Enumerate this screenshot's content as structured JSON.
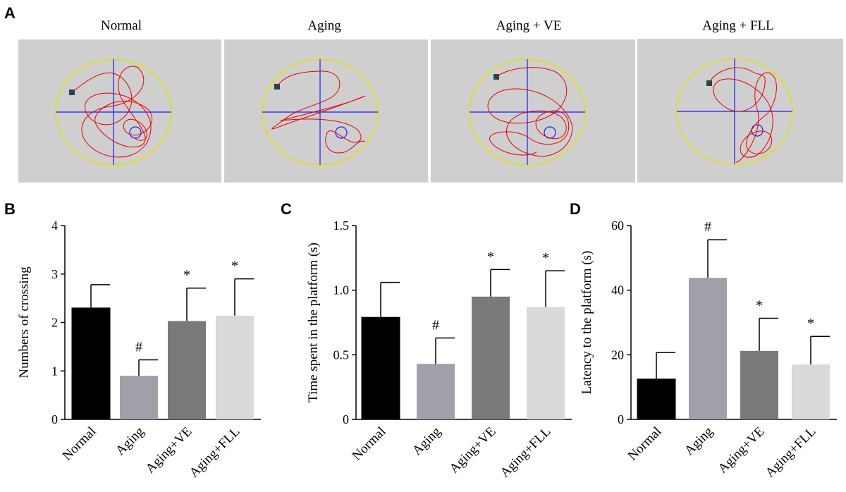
{
  "panels": {
    "a": "A",
    "b": "B",
    "c": "C",
    "d": "D"
  },
  "maze": {
    "titles": [
      "Normal",
      "Aging",
      "Aging + VE",
      "Aging + FLL"
    ],
    "colors": {
      "background": "#cfcfcf",
      "pool": "#e5e000",
      "axis": "#1a1aff",
      "path": "#e60000",
      "platform": "#1a1aff",
      "start": "#1a4a4a"
    }
  },
  "chart_data": [
    {
      "type": "bar",
      "categories": [
        "Normal",
        "Aging",
        "Aging+VE",
        "Aging+FLL"
      ],
      "values": [
        2.3,
        0.9,
        2.03,
        2.14
      ],
      "errors": [
        0.48,
        0.33,
        0.68,
        0.76
      ],
      "annotations": [
        "",
        "#",
        "*",
        "*"
      ],
      "ylabel": "Numbers of crossing",
      "ylim": [
        0,
        4
      ],
      "yticks": [
        "0",
        "1",
        "2",
        "3",
        "4"
      ],
      "colors": [
        "#000000",
        "#a0a0a8",
        "#7a7a7a",
        "#d9d9d9"
      ]
    },
    {
      "type": "bar",
      "categories": [
        "Normal",
        "Aging",
        "Aging+VE",
        "Aging+FLL"
      ],
      "values": [
        0.79,
        0.43,
        0.95,
        0.87
      ],
      "errors": [
        0.27,
        0.2,
        0.21,
        0.28
      ],
      "annotations": [
        "",
        "#",
        "*",
        "*"
      ],
      "ylabel": "Time spent in the platform (s)",
      "ylim": [
        0,
        1.5
      ],
      "yticks": [
        "0",
        "0.5",
        "1.0",
        "1.5"
      ],
      "colors": [
        "#000000",
        "#a0a0a8",
        "#7a7a7a",
        "#d9d9d9"
      ]
    },
    {
      "type": "bar",
      "categories": [
        "Normal",
        "Aging",
        "Aging+VE",
        "Aging+FLL"
      ],
      "values": [
        12.5,
        43.8,
        21.2,
        17.0
      ],
      "errors": [
        8.2,
        11.8,
        10.1,
        8.7
      ],
      "annotations": [
        "",
        "#",
        "*",
        "*"
      ],
      "ylabel": "Latency to the platform (s)",
      "ylim": [
        0,
        60
      ],
      "yticks": [
        "0",
        "20",
        "40",
        "60"
      ],
      "colors": [
        "#000000",
        "#a0a0a8",
        "#7a7a7a",
        "#d9d9d9"
      ]
    }
  ]
}
